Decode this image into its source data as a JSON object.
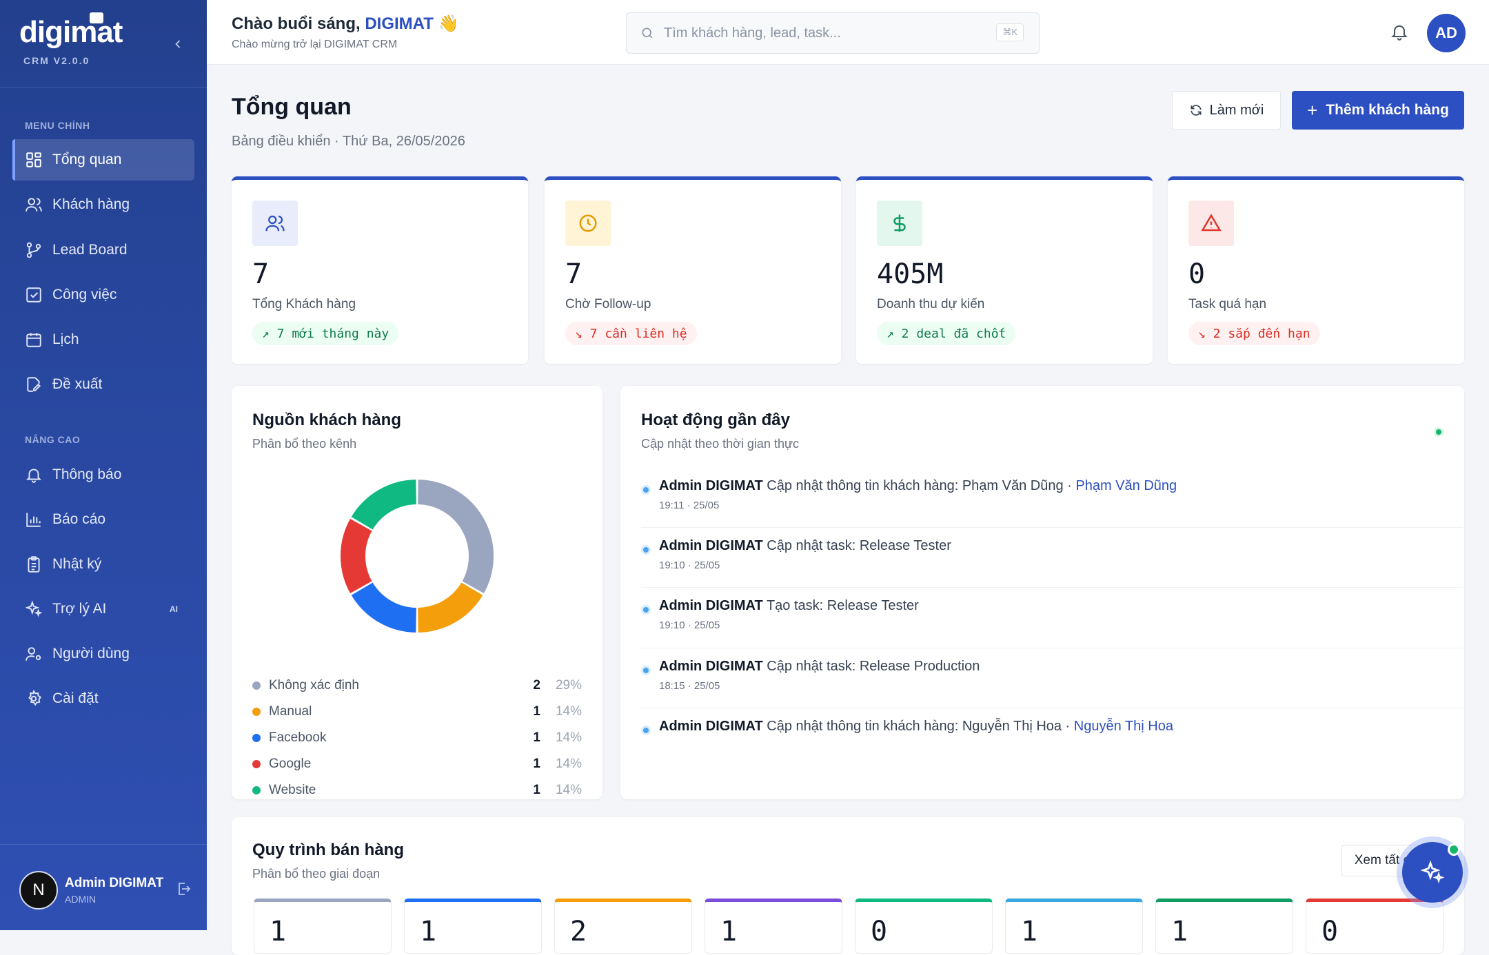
{
  "sidebar": {
    "brand": "digimat",
    "version": "CRM V2.0.0",
    "section_main": "MENU CHÍNH",
    "section_advanced": "NÂNG CAO",
    "items_main": [
      {
        "label": "Tổng quan",
        "icon": "grid-icon"
      },
      {
        "label": "Khách hàng",
        "icon": "users-icon"
      },
      {
        "label": "Lead Board",
        "icon": "git-branch-icon"
      },
      {
        "label": "Công việc",
        "icon": "checkbox-icon"
      },
      {
        "label": "Lịch",
        "icon": "calendar-icon"
      },
      {
        "label": "Đề xuất",
        "icon": "file-edit-icon"
      }
    ],
    "items_advanced": [
      {
        "label": "Thông báo",
        "icon": "bell-icon"
      },
      {
        "label": "Báo cáo",
        "icon": "bar-chart-icon"
      },
      {
        "label": "Nhật ký",
        "icon": "clipboard-icon"
      },
      {
        "label": "Trợ lý AI",
        "icon": "sparkles-icon",
        "badge": "AI"
      },
      {
        "label": "Người dùng",
        "icon": "user-cog-icon"
      },
      {
        "label": "Cài đặt",
        "icon": "gear-icon"
      }
    ],
    "user": {
      "initial": "N",
      "name": "Admin DIGIMAT",
      "role": "ADMIN"
    }
  },
  "header": {
    "greeting_prefix": "Chào buổi sáng, ",
    "greeting_name": "DIGIMAT",
    "greeting_emoji": "👋",
    "subtitle": "Chào mừng trở lại DIGIMAT CRM",
    "search_placeholder": "Tìm khách hàng, lead, task...",
    "search_shortcut": "⌘K",
    "avatar_initials": "AD"
  },
  "page": {
    "title": "Tổng quan",
    "subtitle": "Bảng điều khiển · Thứ Ba, 26/05/2026",
    "refresh_label": "Làm mới",
    "add_label": "Thêm khách hàng"
  },
  "stats": [
    {
      "value": "7",
      "label": "Tổng Khách hàng",
      "trend": "↗ 7 mới tháng này",
      "trend_dir": "up",
      "icon": "users-icon",
      "icon_bg": "#e8ecfb",
      "icon_color": "#2c4fc2"
    },
    {
      "value": "7",
      "label": "Chờ Follow-up",
      "trend": "↘ 7 cần liên hệ",
      "trend_dir": "down",
      "icon": "clock-icon",
      "icon_bg": "#fff4d6",
      "icon_color": "#e59a00"
    },
    {
      "value": "405M",
      "label": "Doanh thu dự kiến",
      "trend": "↗ 2 deal đã chốt",
      "trend_dir": "up",
      "icon": "dollar-icon",
      "icon_bg": "#e3f7ee",
      "icon_color": "#0f9d63"
    },
    {
      "value": "0",
      "label": "Task quá hạn",
      "trend": "↘ 2 sắp đến hạn",
      "trend_dir": "down",
      "icon": "warning-icon",
      "icon_bg": "#fde8e8",
      "icon_color": "#e0352b"
    }
  ],
  "sources": {
    "title": "Nguồn khách hàng",
    "subtitle": "Phân bổ theo kênh"
  },
  "chart_data": {
    "type": "pie",
    "categories": [
      "Không xác định",
      "Manual",
      "Facebook",
      "Google",
      "Website"
    ],
    "values": [
      2,
      1,
      1,
      1,
      1
    ],
    "percents": [
      "29%",
      "14%",
      "14%",
      "14%",
      "14%"
    ],
    "colors": [
      "#9aa6bf",
      "#f59e0b",
      "#1f6ff2",
      "#e53935",
      "#10b981"
    ],
    "legend_position": "bottom"
  },
  "activity": {
    "title": "Hoạt động gần đây",
    "subtitle": "Cập nhật theo thời gian thực",
    "items": [
      {
        "actor": "Admin DIGIMAT",
        "text": "Cập nhật thông tin khách hàng: Phạm Văn Dũng · ",
        "link": "Phạm Văn Dũng",
        "time": "19:11 · 25/05"
      },
      {
        "actor": "Admin DIGIMAT",
        "text": "Cập nhật task: Release Tester",
        "link": "",
        "time": "19:10 · 25/05"
      },
      {
        "actor": "Admin DIGIMAT",
        "text": "Tạo task: Release Tester",
        "link": "",
        "time": "19:10 · 25/05"
      },
      {
        "actor": "Admin DIGIMAT",
        "text": "Cập nhật task: Release Production",
        "link": "",
        "time": "18:15 · 25/05"
      },
      {
        "actor": "Admin DIGIMAT",
        "text": "Cập nhật thông tin khách hàng: Nguyễn Thị Hoa · ",
        "link": "Nguyễn Thị Hoa",
        "time": ""
      }
    ]
  },
  "pipeline": {
    "title": "Quy trình bán hàng",
    "subtitle": "Phân bổ theo giai đoạn",
    "view_all": "Xem tất c",
    "stages": [
      {
        "value": "1",
        "color": "#9aa6bf"
      },
      {
        "value": "1",
        "color": "#1f6ff2"
      },
      {
        "value": "2",
        "color": "#f59e0b"
      },
      {
        "value": "1",
        "color": "#7c4ddb"
      },
      {
        "value": "0",
        "color": "#10b981"
      },
      {
        "value": "1",
        "color": "#38a8e0"
      },
      {
        "value": "1",
        "color": "#0f9d63"
      },
      {
        "value": "0",
        "color": "#e53935"
      }
    ]
  }
}
